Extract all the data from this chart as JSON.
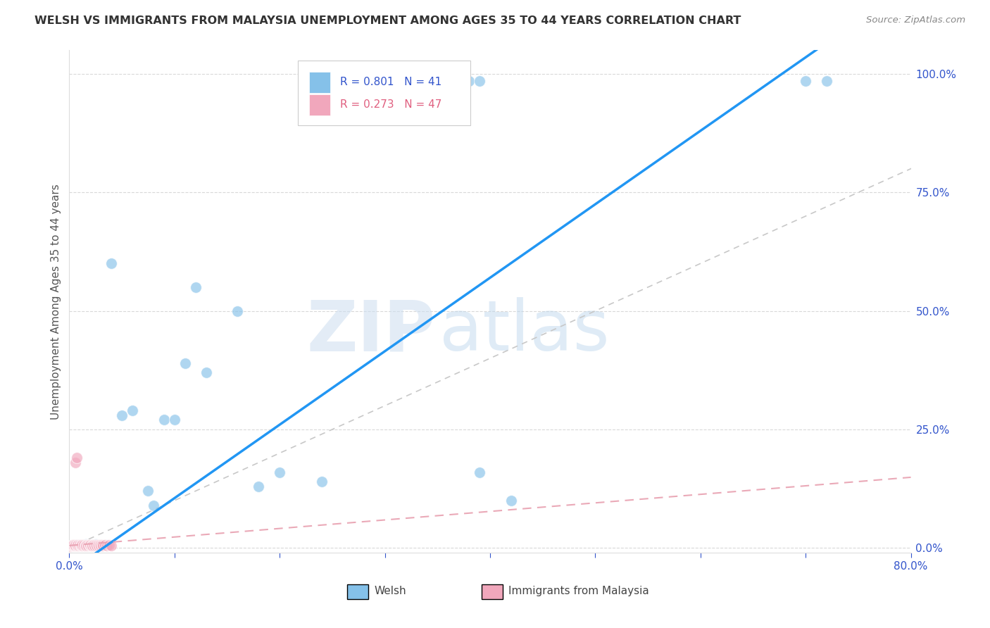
{
  "title": "WELSH VS IMMIGRANTS FROM MALAYSIA UNEMPLOYMENT AMONG AGES 35 TO 44 YEARS CORRELATION CHART",
  "source": "Source: ZipAtlas.com",
  "ylabel": "Unemployment Among Ages 35 to 44 years",
  "xlim": [
    0.0,
    0.8
  ],
  "ylim": [
    -0.01,
    1.05
  ],
  "xtick_positions": [
    0.0,
    0.1,
    0.2,
    0.3,
    0.4,
    0.5,
    0.6,
    0.7,
    0.8
  ],
  "xticklabels": [
    "0.0%",
    "",
    "",
    "",
    "",
    "",
    "",
    "",
    "80.0%"
  ],
  "yticks_right": [
    0.0,
    0.25,
    0.5,
    0.75,
    1.0
  ],
  "yticklabels_right": [
    "0.0%",
    "25.0%",
    "50.0%",
    "75.0%",
    "100.0%"
  ],
  "welsh_color": "#85c1e9",
  "malaysia_color": "#f1a7bc",
  "welsh_R": 0.801,
  "welsh_N": 41,
  "malaysia_R": 0.273,
  "malaysia_N": 47,
  "welsh_line_color": "#2196f3",
  "malaysia_line_color": "#e8a0b0",
  "diag_color": "#c8c8c8",
  "watermark_zip": "ZIP",
  "watermark_atlas": "atlas",
  "background_color": "#ffffff",
  "grid_color": "#d0d0d0",
  "title_color": "#333333",
  "source_color": "#888888",
  "axis_label_color": "#555555",
  "tick_label_color": "#3355cc",
  "legend_welsh_text_color": "#3355cc",
  "legend_malaysia_text_color": "#e06080"
}
